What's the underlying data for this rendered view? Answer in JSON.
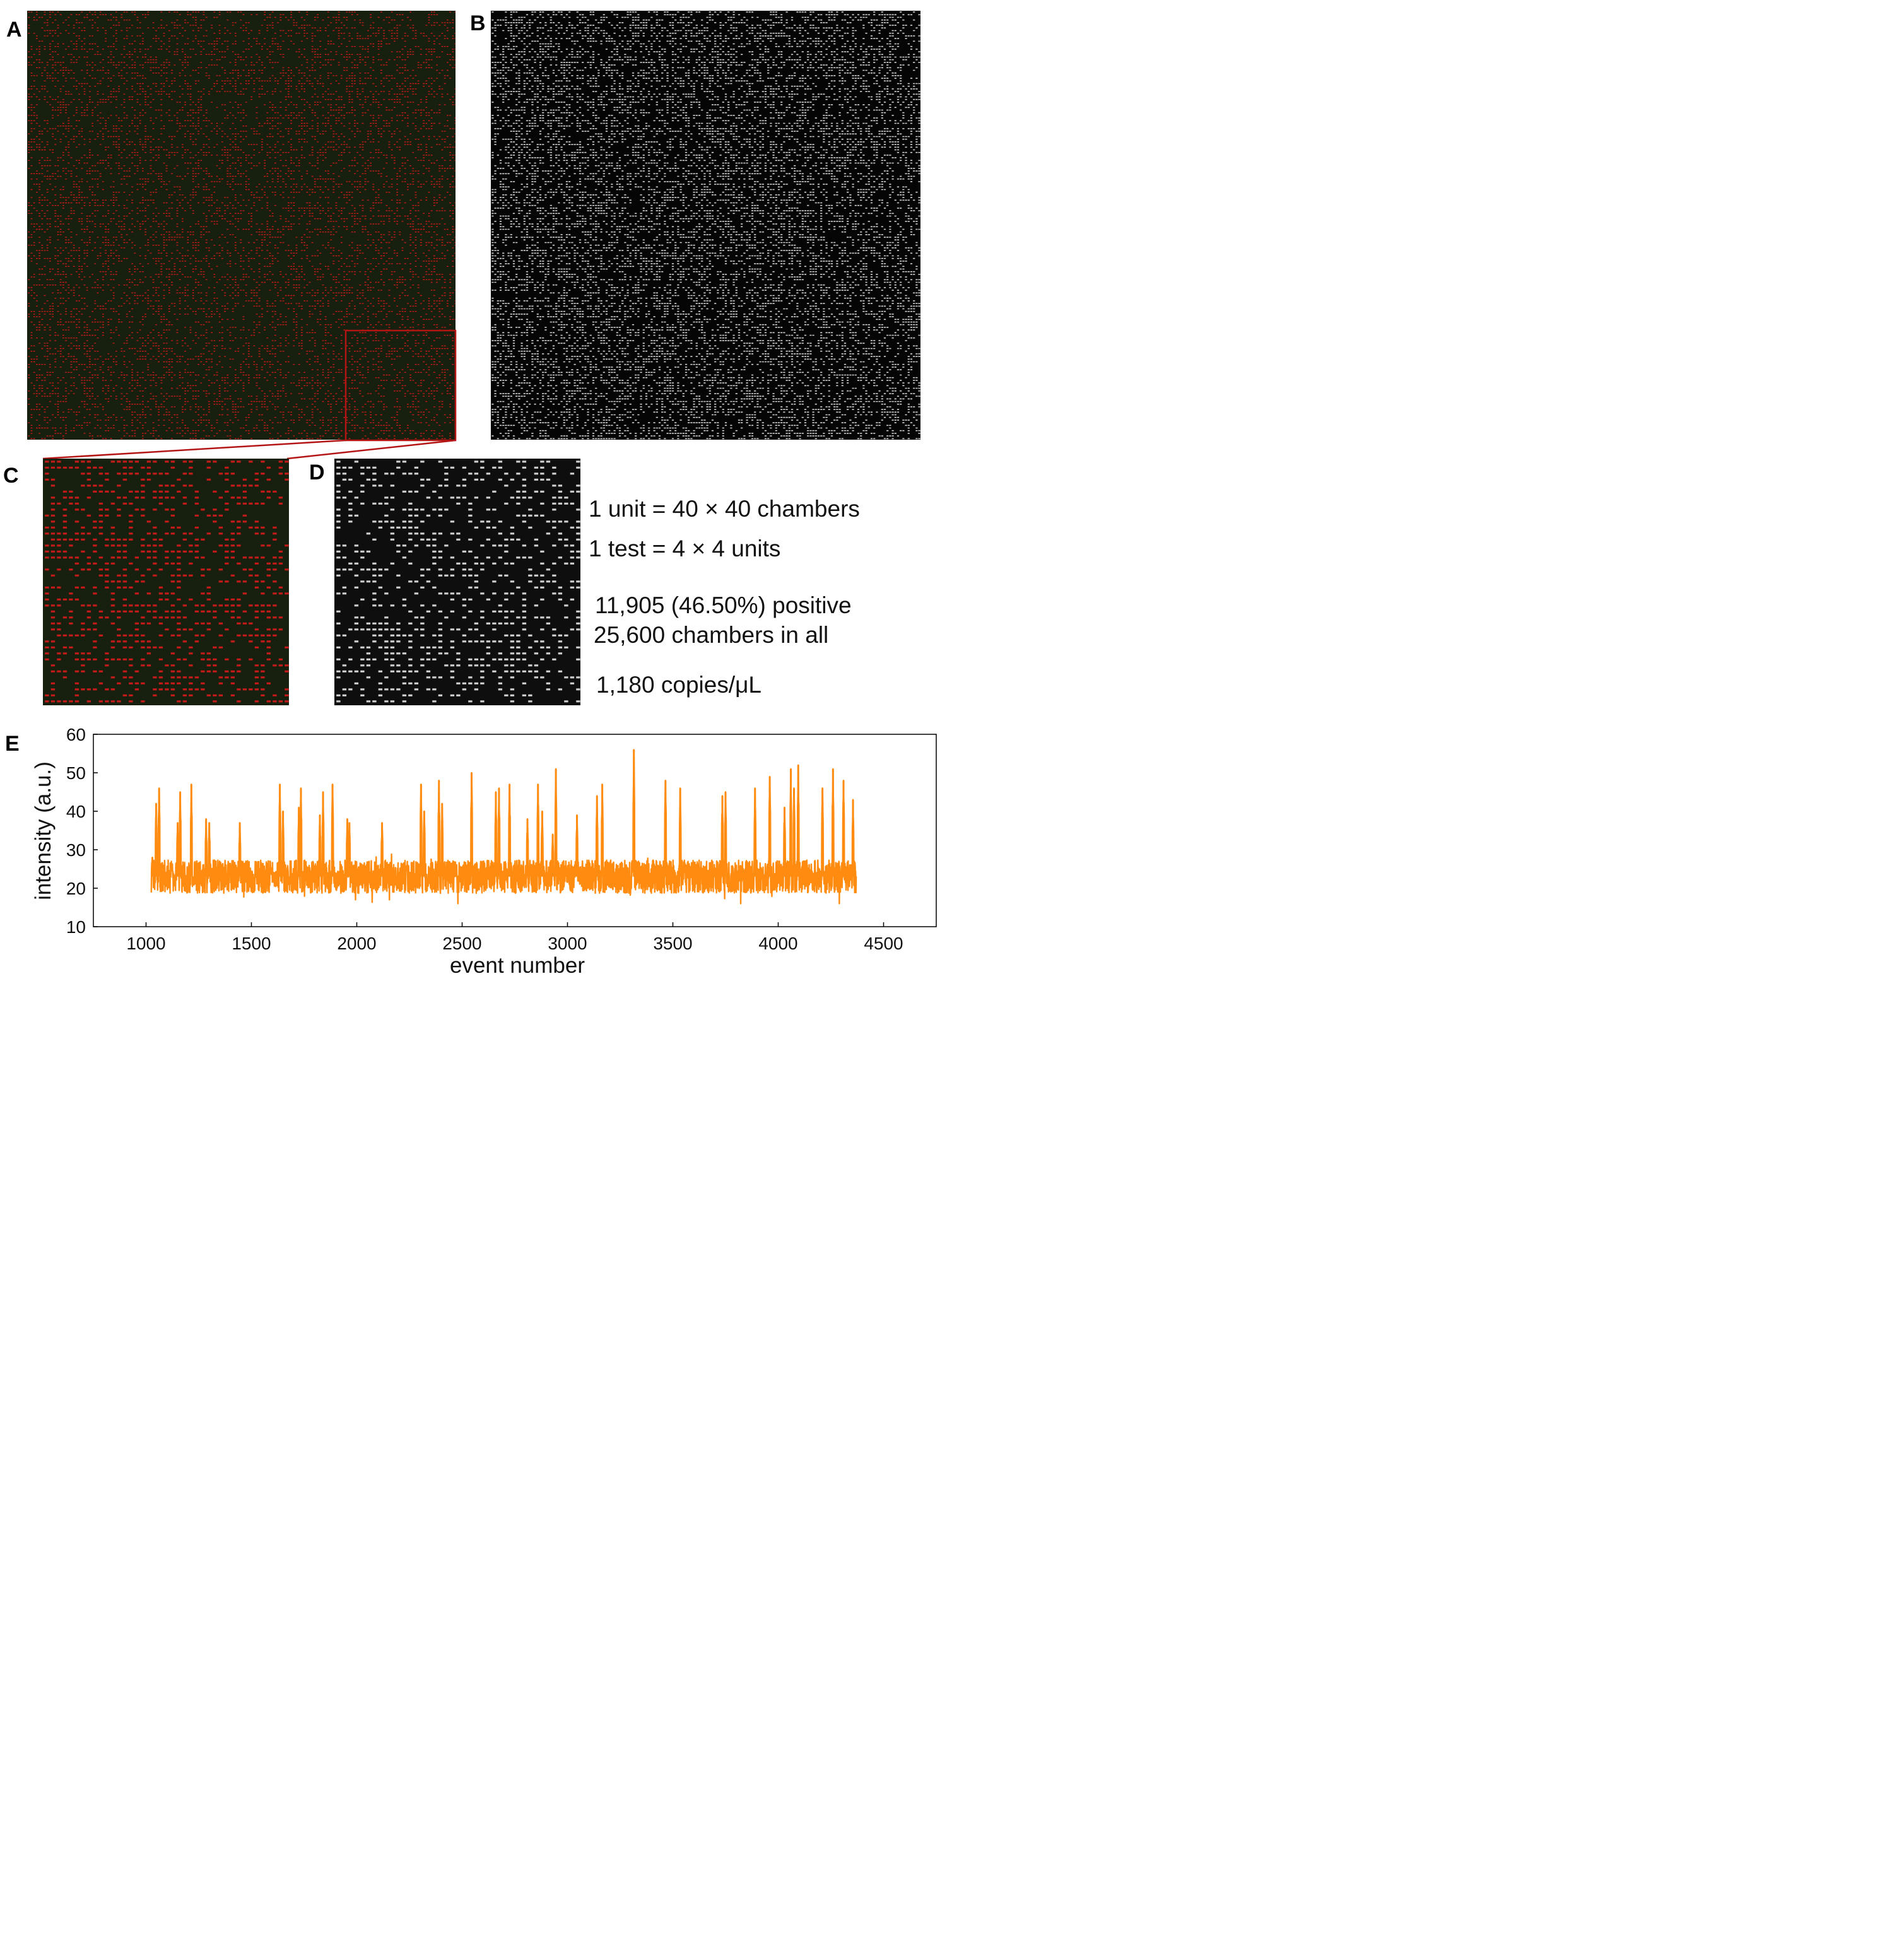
{
  "panels": {
    "A": {
      "label": "A"
    },
    "B": {
      "label": "B"
    },
    "C": {
      "label": "C"
    },
    "D": {
      "label": "D"
    },
    "E": {
      "label": "E"
    }
  },
  "colors": {
    "chip_red_bg": "#17200e",
    "chip_red_spot": "#c41a1a",
    "chip_gray_bg": "#0e0e0e",
    "chip_gray_spot": "#cfcfcf",
    "zoom_box": "#b41414",
    "trace": "#ff8c10"
  },
  "info": {
    "unit_line": "1 unit = 40 × 40 chambers",
    "test_line": "1 test = 4 × 4 units",
    "positive_line": "11,905 (46.50%) positive",
    "total_line": "25,600 chambers in all",
    "concentration_line": "1,180 copies/μL"
  },
  "chart_data": {
    "type": "line",
    "title": "",
    "xlabel": "event number",
    "ylabel": "intensity (a.u.)",
    "xlim": [
      750,
      4750
    ],
    "ylim": [
      10,
      60
    ],
    "xticks": [
      1000,
      1500,
      2000,
      2500,
      3000,
      3500,
      4000,
      4500
    ],
    "yticks": [
      10,
      20,
      30,
      40,
      50,
      60
    ],
    "grid": false,
    "legend": "none",
    "series": [
      {
        "x_range": [
          1025,
          4370
        ],
        "baseline": {
          "mean": 23,
          "min": 16,
          "max": 30
        },
        "peaks": [
          {
            "x": 1030,
            "y": 28
          },
          {
            "x": 1048,
            "y": 42
          },
          {
            "x": 1062,
            "y": 46
          },
          {
            "x": 1150,
            "y": 37
          },
          {
            "x": 1162,
            "y": 45
          },
          {
            "x": 1215,
            "y": 47
          },
          {
            "x": 1285,
            "y": 38
          },
          {
            "x": 1300,
            "y": 37
          },
          {
            "x": 1445,
            "y": 37
          },
          {
            "x": 1635,
            "y": 47
          },
          {
            "x": 1650,
            "y": 40
          },
          {
            "x": 1725,
            "y": 41
          },
          {
            "x": 1735,
            "y": 46
          },
          {
            "x": 1825,
            "y": 39
          },
          {
            "x": 1840,
            "y": 45
          },
          {
            "x": 1885,
            "y": 47
          },
          {
            "x": 1955,
            "y": 38
          },
          {
            "x": 1965,
            "y": 37
          },
          {
            "x": 2120,
            "y": 37
          },
          {
            "x": 2305,
            "y": 47
          },
          {
            "x": 2320,
            "y": 40
          },
          {
            "x": 2390,
            "y": 48
          },
          {
            "x": 2405,
            "y": 42
          },
          {
            "x": 2545,
            "y": 50
          },
          {
            "x": 2660,
            "y": 45
          },
          {
            "x": 2675,
            "y": 46
          },
          {
            "x": 2725,
            "y": 47
          },
          {
            "x": 2810,
            "y": 38
          },
          {
            "x": 2860,
            "y": 47
          },
          {
            "x": 2880,
            "y": 40
          },
          {
            "x": 2930,
            "y": 34
          },
          {
            "x": 2945,
            "y": 51
          },
          {
            "x": 3045,
            "y": 39
          },
          {
            "x": 3140,
            "y": 44
          },
          {
            "x": 3165,
            "y": 47
          },
          {
            "x": 3315,
            "y": 56
          },
          {
            "x": 3465,
            "y": 48
          },
          {
            "x": 3535,
            "y": 46
          },
          {
            "x": 3735,
            "y": 44
          },
          {
            "x": 3750,
            "y": 45
          },
          {
            "x": 3890,
            "y": 46
          },
          {
            "x": 3960,
            "y": 49
          },
          {
            "x": 4030,
            "y": 41
          },
          {
            "x": 4060,
            "y": 51
          },
          {
            "x": 4075,
            "y": 46
          },
          {
            "x": 4095,
            "y": 52
          },
          {
            "x": 4210,
            "y": 46
          },
          {
            "x": 4260,
            "y": 51
          },
          {
            "x": 4310,
            "y": 48
          },
          {
            "x": 4355,
            "y": 43
          }
        ]
      }
    ]
  }
}
